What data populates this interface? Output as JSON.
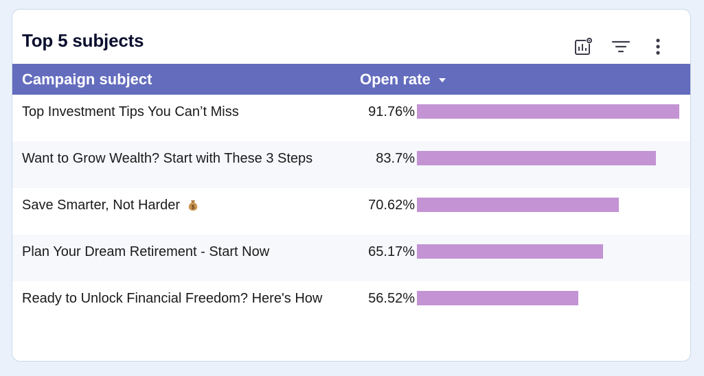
{
  "widget": {
    "title": "Top 5 subjects",
    "toolbar": {
      "chart_settings_icon": "chart-settings-icon",
      "filter_icon": "filter-icon",
      "more_icon": "more-vertical-icon"
    }
  },
  "table": {
    "columns": {
      "subject": "Campaign subject",
      "rate": "Open rate"
    },
    "sort": "descending",
    "rows": [
      {
        "subject": "Top Investment Tips You Can’t Miss",
        "rate_label": "91.76%",
        "rate": 91.76
      },
      {
        "subject": "Want to Grow Wealth? Start with These 3 Steps",
        "rate_label": "83.7%",
        "rate": 83.7
      },
      {
        "subject": "Save Smarter, Not Harder",
        "rate_label": "70.62%",
        "rate": 70.62,
        "emoji": "money-bag-icon"
      },
      {
        "subject": "Plan Your Dream Retirement - Start Now",
        "rate_label": "65.17%",
        "rate": 65.17
      },
      {
        "subject": "Ready to Unlock Financial Freedom? Here's How",
        "rate_label": "56.52%",
        "rate": 56.52
      }
    ]
  },
  "colors": {
    "header_bg": "#636cbd",
    "bar": "#c393d4",
    "page_bg": "#eaf1fb"
  }
}
